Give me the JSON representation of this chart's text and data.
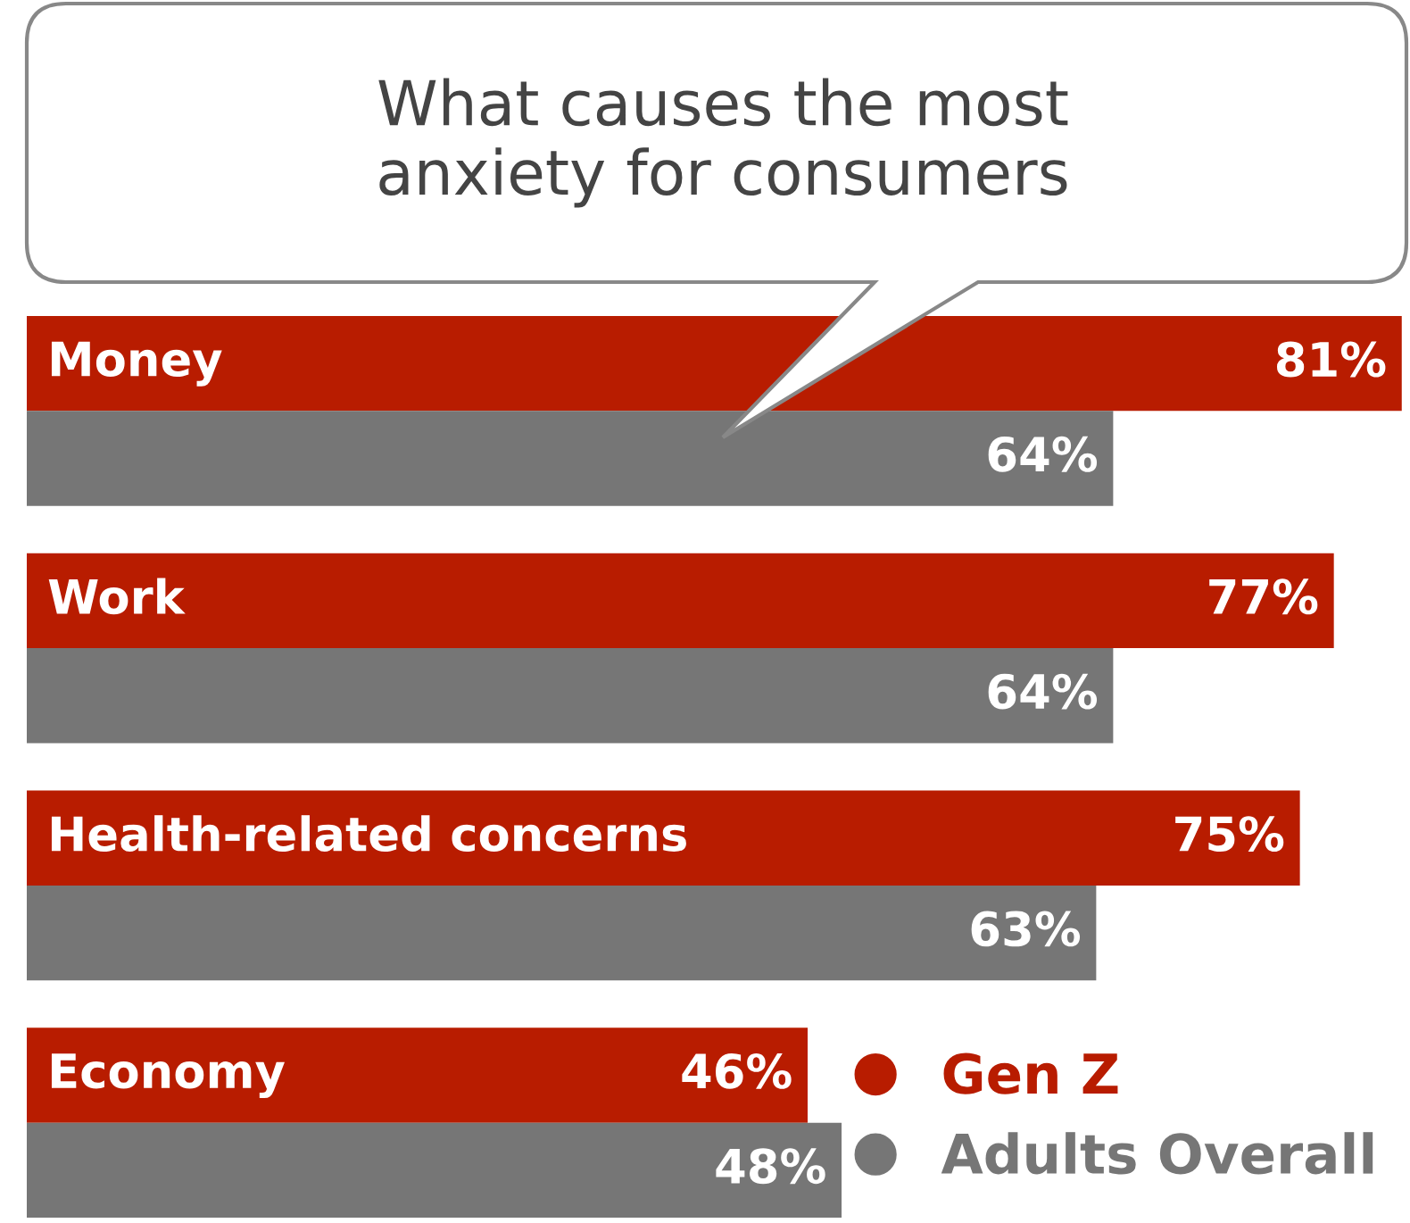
{
  "chart_data": {
    "type": "bar",
    "orientation": "horizontal",
    "title": "What causes the most anxiety for consumers",
    "categories": [
      "Money",
      "Work",
      "Health-related concerns",
      "Economy"
    ],
    "series": [
      {
        "name": "Gen Z",
        "color": "#b81c00",
        "values": [
          81,
          77,
          75,
          46
        ],
        "value_labels": [
          "81%",
          "77%",
          "75%",
          "46%"
        ]
      },
      {
        "name": "Adults Overall",
        "color": "#767676",
        "values": [
          64,
          64,
          63,
          48
        ],
        "value_labels": [
          "64%",
          "64%",
          "63%",
          "48%"
        ]
      }
    ],
    "legend": "bottom right"
  }
}
